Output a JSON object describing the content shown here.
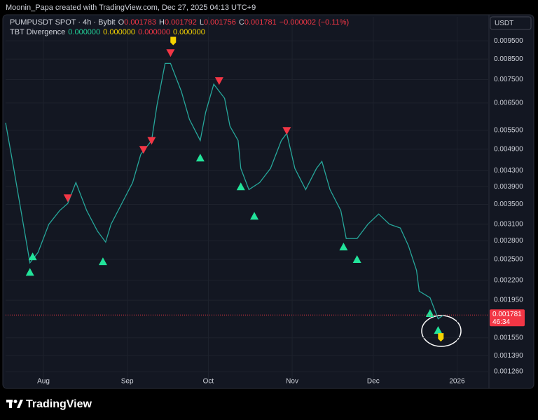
{
  "header": "Moonin_Papa created with TradingView.com, Dec 27, 2025 04:13 UTC+9",
  "footer": "TradingView",
  "chart_data": {
    "type": "line",
    "symbol": "PUMPUSDT SPOT · 4h · Bybit",
    "ohlc": [
      {
        "label": "O",
        "value": 0.001783
      },
      {
        "label": "H",
        "value": 0.001792
      },
      {
        "label": "L",
        "value": 0.001756
      },
      {
        "label": "C",
        "value": 0.001781
      }
    ],
    "change": "−0.000002 (−0.11%)",
    "indicator": {
      "name": "TBT Divergence",
      "values": [
        {
          "text": "0.000000",
          "color": "#22d39a"
        },
        {
          "text": "0.000000",
          "color": "#f5d300"
        },
        {
          "text": "0.000000",
          "color": "#f23645"
        },
        {
          "text": "0.000000",
          "color": "#f5d300"
        }
      ]
    },
    "currency": "USDT",
    "last_price": 0.001781,
    "last_price_color": "#f23645",
    "countdown": "46:34",
    "log_scale": true,
    "x": [
      -14,
      -11,
      -7,
      -5,
      -2,
      2,
      6,
      9,
      12,
      16,
      20,
      23,
      25,
      29,
      33,
      36,
      40,
      42,
      45,
      47,
      51,
      54,
      58,
      60,
      63,
      67,
      69,
      72,
      73,
      76,
      80,
      84,
      88,
      90,
      93,
      97,
      101,
      103,
      106,
      110,
      112,
      116,
      120,
      124,
      128,
      132,
      135,
      138,
      139,
      143,
      146,
      148
    ],
    "series": [
      {
        "color": "#26a69a",
        "values": [
          0.00576,
          0.00436,
          0.00297,
          0.00245,
          0.00261,
          0.0031,
          0.00337,
          0.00352,
          0.004,
          0.00337,
          0.00297,
          0.00278,
          0.0031,
          0.00352,
          0.004,
          0.00475,
          0.00517,
          0.00641,
          0.00828,
          0.00828,
          0.00698,
          0.00588,
          0.00517,
          0.00614,
          0.00729,
          0.00669,
          0.00564,
          0.00517,
          0.00436,
          0.00383,
          0.004,
          0.00436,
          0.00517,
          0.0054,
          0.00436,
          0.00383,
          0.00436,
          0.00455,
          0.00383,
          0.00337,
          0.00284,
          0.00284,
          0.0031,
          0.0033,
          0.0031,
          0.00303,
          0.00272,
          0.00234,
          0.00206,
          0.00198,
          0.00174,
          0.001781
        ]
      }
    ],
    "sell_signals": {
      "color": "#f23645",
      "x": [
        9,
        37,
        40,
        47,
        65,
        90
      ],
      "values": [
        0.003641,
        0.004893,
        0.00517,
        0.008833,
        0.007445,
        0.005492
      ]
    },
    "buy_signals": {
      "color": "#22e39a",
      "x": [
        -5,
        -4,
        22,
        58,
        73,
        78,
        111,
        116,
        143,
        146
      ],
      "values": [
        0.002313,
        0.002543,
        0.002468,
        0.004648,
        0.0039,
        0.003258,
        0.002699,
        0.0025,
        0.001798,
        0.001622
      ]
    },
    "alert_signals": {
      "color": "#f5d300",
      "x": [
        48,
        147
      ],
      "values": [
        0.00945,
        0.001547
      ]
    },
    "xlim": [
      -14,
      164.8
    ],
    "xticks": [
      {
        "value": 0,
        "label": "Aug"
      },
      {
        "value": 31,
        "label": "Sep"
      },
      {
        "value": 61,
        "label": "Oct"
      },
      {
        "value": 92,
        "label": "Nov"
      },
      {
        "value": 122,
        "label": "Dec"
      },
      {
        "value": 153,
        "label": "2026"
      }
    ],
    "ylim": [
      0.001167,
      0.011
    ],
    "yticks": [
      {
        "value": 0.0095,
        "label": "0.009500"
      },
      {
        "value": 0.0085,
        "label": "0.008500"
      },
      {
        "value": 0.0075,
        "label": "0.007500"
      },
      {
        "value": 0.0065,
        "label": "0.006500"
      },
      {
        "value": 0.0055,
        "label": "0.005500"
      },
      {
        "value": 0.0049,
        "label": "0.004900"
      },
      {
        "value": 0.0043,
        "label": "0.004300"
      },
      {
        "value": 0.0039,
        "label": "0.003900"
      },
      {
        "value": 0.0035,
        "label": "0.003500"
      },
      {
        "value": 0.0031,
        "label": "0.003100"
      },
      {
        "value": 0.0028,
        "label": "0.002800"
      },
      {
        "value": 0.0025,
        "label": "0.002500"
      },
      {
        "value": 0.0022,
        "label": "0.002200"
      },
      {
        "value": 0.00195,
        "label": "0.001950"
      },
      {
        "value": 0.00155,
        "label": "0.001550"
      },
      {
        "value": 0.00139,
        "label": "0.001390"
      },
      {
        "value": 0.00126,
        "label": "0.001260"
      }
    ],
    "grid": true
  }
}
